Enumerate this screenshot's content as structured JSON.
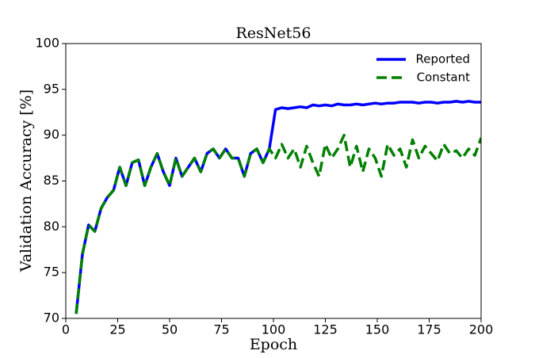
{
  "chart_data": {
    "type": "line",
    "title": "ResNet56",
    "xlabel": "Epoch",
    "ylabel": "Validation Accuracy [%]",
    "x": [
      5,
      8,
      11,
      14,
      17,
      20,
      23,
      26,
      29,
      32,
      35,
      38,
      41,
      44,
      47,
      50,
      53,
      56,
      59,
      62,
      65,
      68,
      71,
      74,
      77,
      80,
      83,
      86,
      89,
      92,
      95,
      98,
      101,
      104,
      107,
      110,
      113,
      116,
      119,
      122,
      125,
      128,
      131,
      134,
      137,
      140,
      143,
      146,
      149,
      152,
      155,
      158,
      161,
      164,
      167,
      170,
      173,
      176,
      179,
      182,
      185,
      188,
      191,
      194,
      197,
      200
    ],
    "series": [
      {
        "name": "Reported",
        "color": "#0000ff",
        "dash": false,
        "values": [
          70.5,
          77,
          80.2,
          79.5,
          82,
          83.2,
          84,
          86.5,
          84.5,
          87,
          87.3,
          84.5,
          86.5,
          88,
          86,
          84.5,
          87.5,
          85.5,
          86.5,
          87.5,
          86,
          88,
          88.5,
          87.5,
          88.5,
          87.5,
          87.5,
          85.5,
          88,
          88.5,
          87,
          88.5,
          92.8,
          93,
          92.9,
          93,
          93.1,
          93,
          93.3,
          93.2,
          93.3,
          93.2,
          93.4,
          93.3,
          93.3,
          93.4,
          93.3,
          93.4,
          93.5,
          93.4,
          93.5,
          93.5,
          93.6,
          93.6,
          93.6,
          93.5,
          93.6,
          93.6,
          93.5,
          93.6,
          93.6,
          93.7,
          93.6,
          93.7,
          93.6,
          93.6
        ]
      },
      {
        "name": "Constant",
        "color": "#008000",
        "dash": true,
        "values": [
          70.5,
          77,
          80.2,
          79.5,
          82,
          83.2,
          84,
          86.5,
          84.5,
          87,
          87.3,
          84.5,
          86.5,
          88,
          86,
          84.5,
          87.5,
          85.5,
          86.5,
          87.5,
          86,
          88,
          88.5,
          87.5,
          88.5,
          87.5,
          87.5,
          85.5,
          88,
          88.5,
          87,
          88.5,
          87.5,
          89,
          87.5,
          88.5,
          86.5,
          88.8,
          87,
          85.5,
          89,
          87.5,
          88.5,
          90,
          86.5,
          88.8,
          86,
          88.5,
          87.5,
          85.5,
          89,
          87.8,
          88.5,
          86.5,
          89.5,
          87.5,
          88.8,
          88,
          87.2,
          89,
          88,
          88.3,
          87.5,
          88.5,
          87.8,
          89.7
        ]
      }
    ],
    "xlim": [
      0,
      200
    ],
    "xticks": [
      0,
      25,
      50,
      75,
      100,
      125,
      150,
      175,
      200
    ],
    "ylim": [
      70,
      100
    ],
    "yticks": [
      70,
      75,
      80,
      85,
      90,
      95,
      100
    ],
    "legend": "upper right"
  }
}
